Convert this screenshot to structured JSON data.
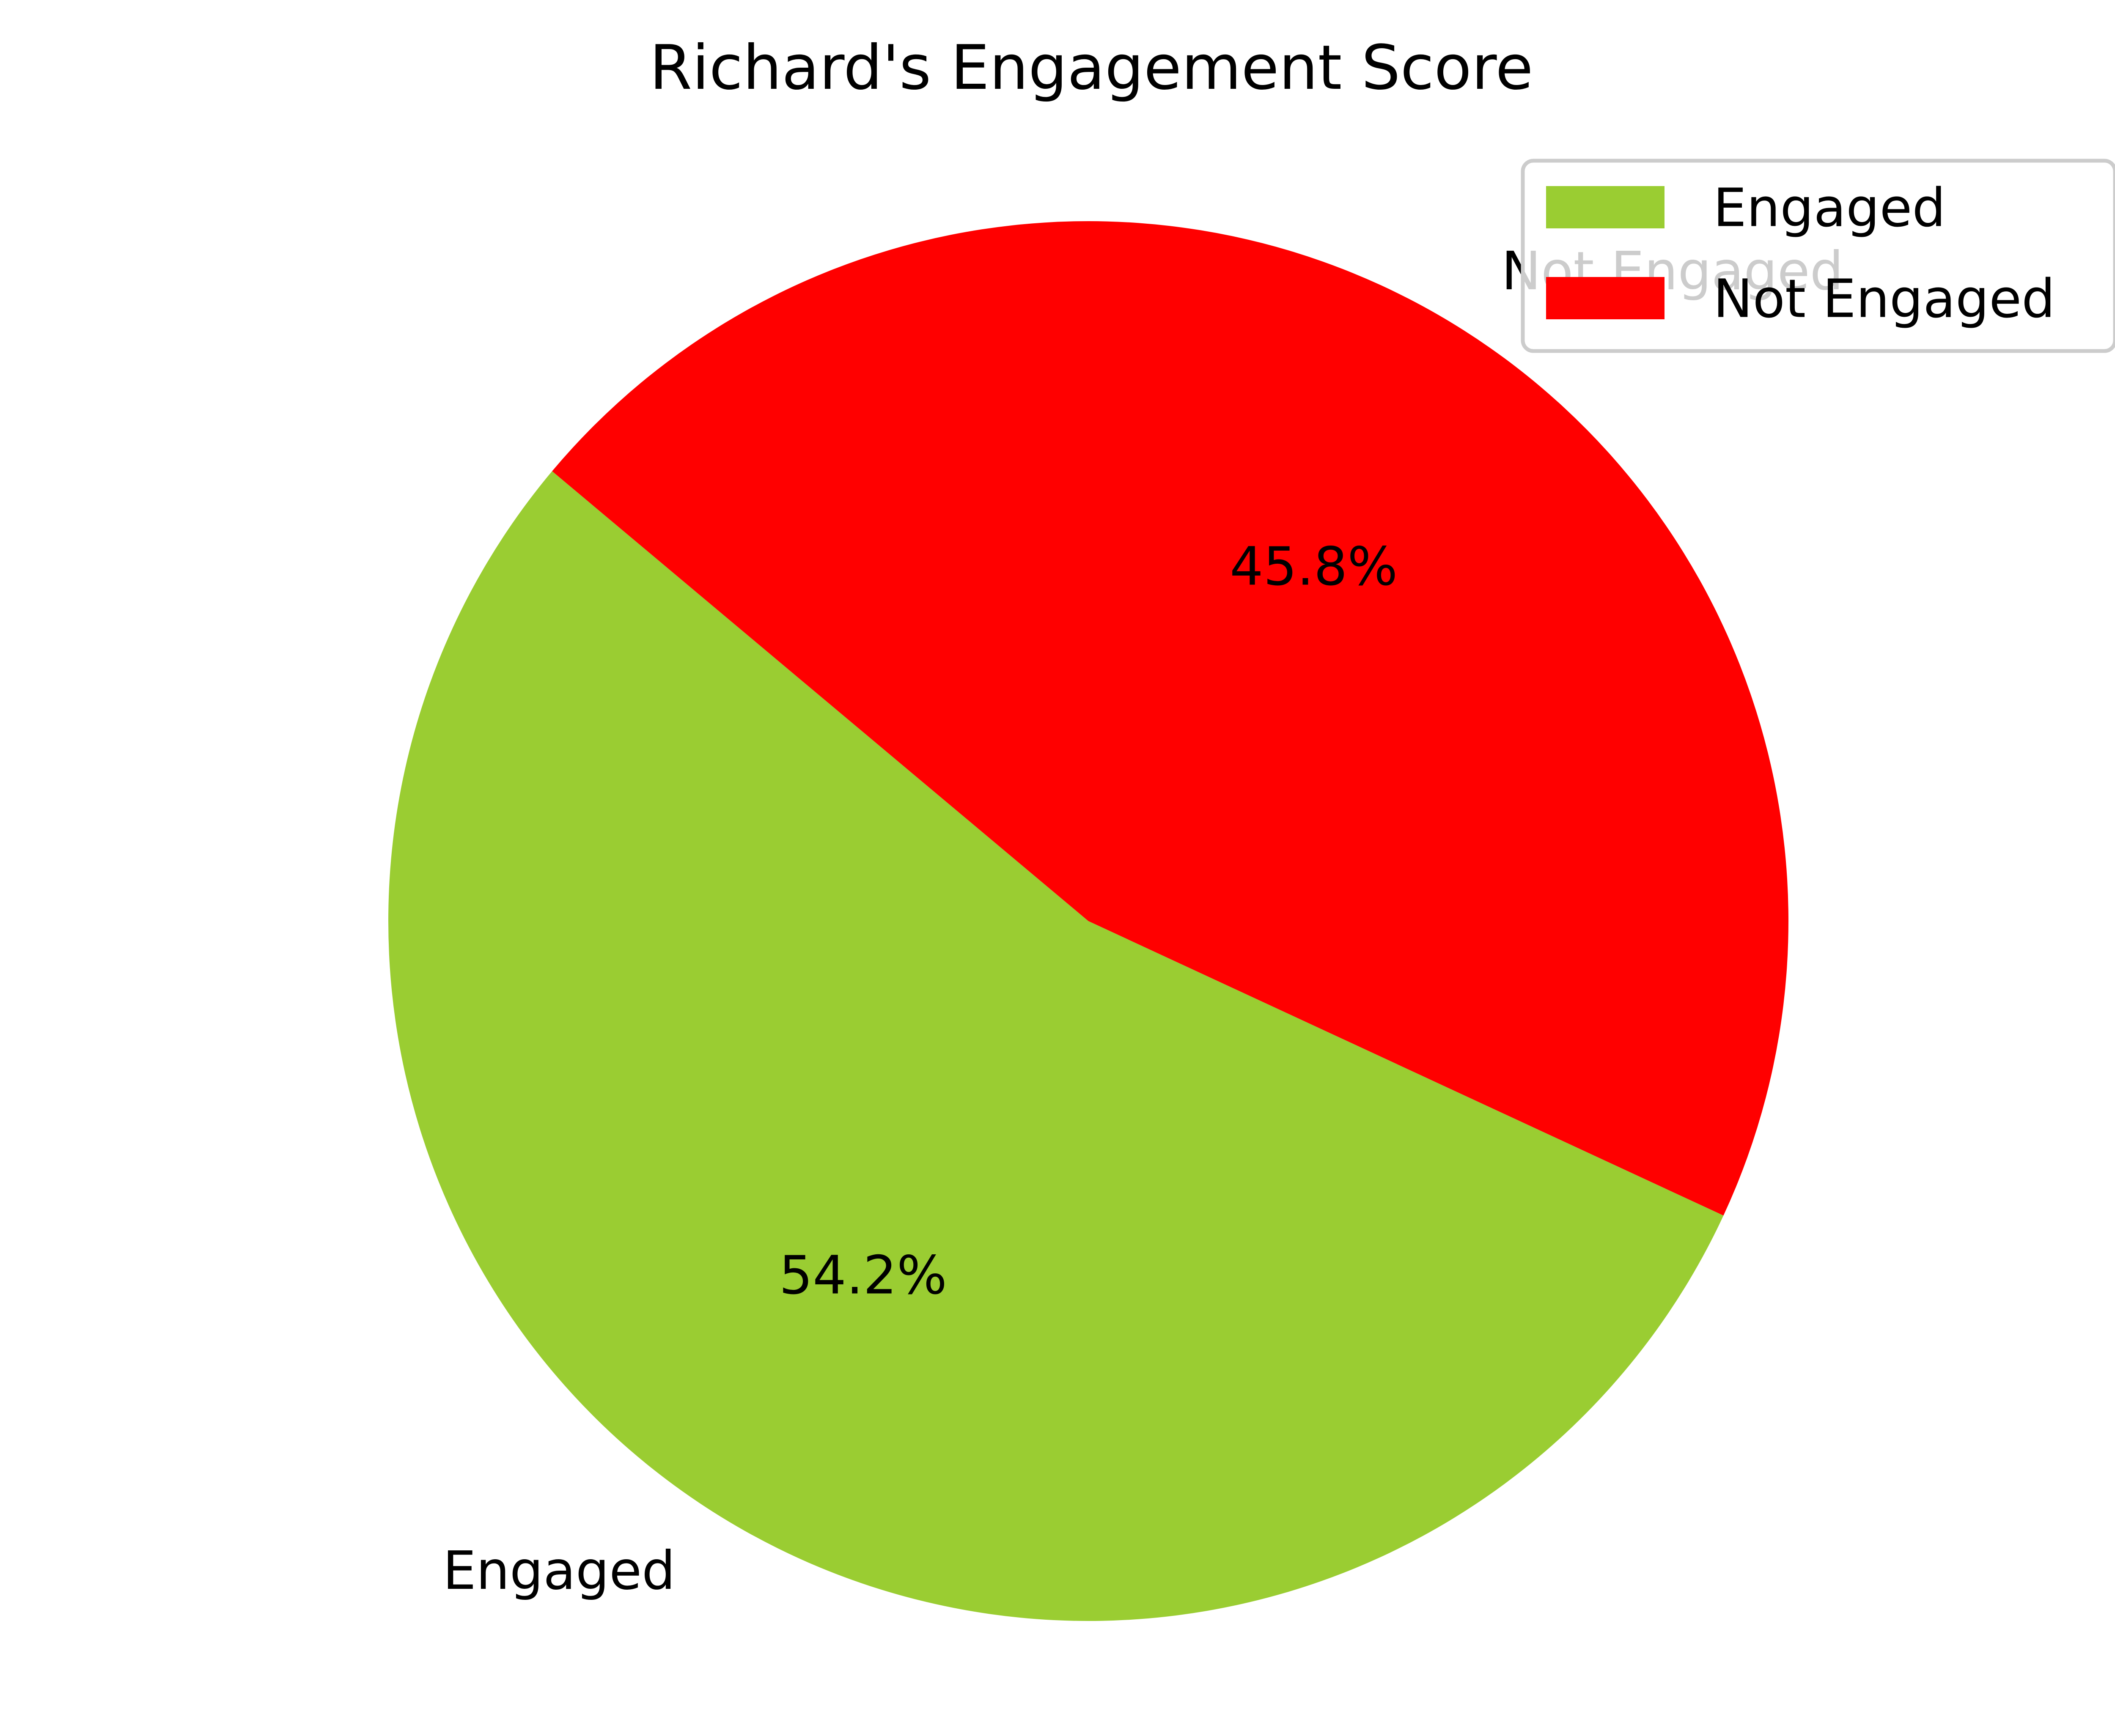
{
  "chart_data": {
    "type": "pie",
    "title": "Richard's Engagement Score",
    "categories": [
      "Engaged",
      "Not Engaged"
    ],
    "values": [
      54.2,
      45.8
    ],
    "value_labels": [
      "54.2%",
      "45.8%"
    ],
    "colors": [
      "#9acd32",
      "#ff0000"
    ],
    "start_angle_deg": 140,
    "direction": "counterclockwise",
    "legend": {
      "placement": "top-right",
      "entries": [
        "Engaged",
        "Not Engaged"
      ]
    }
  }
}
